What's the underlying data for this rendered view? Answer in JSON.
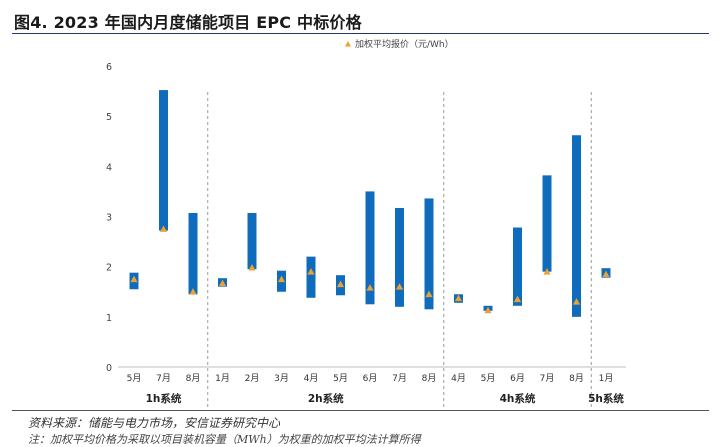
{
  "figure": {
    "title": "图4. 2023 年国内月度储能项目 EPC 中标价格",
    "source": "资料来源：储能与电力市场，安信证券研究中心",
    "note": "注：加权平均价格为采取以项目装机容量（MWh）为权重的加权平均法计算所得"
  },
  "colors": {
    "bar": "#0f6cbd",
    "marker": "#f0a030",
    "grid": "#e5e5e5",
    "axis": "#bfbfbf"
  },
  "chart_data": {
    "type": "range-bar",
    "title": "",
    "legend": {
      "label": "加权平均报价（元/Wh）",
      "placement": "top-center",
      "marker": "triangle"
    },
    "ylim": [
      0,
      6
    ],
    "yticks": [
      0,
      1,
      2,
      3,
      4,
      5,
      6
    ],
    "grid": false,
    "categories": [
      "5月",
      "7月",
      "8月",
      "1月",
      "2月",
      "3月",
      "4月",
      "5月",
      "6月",
      "7月",
      "8月",
      "4月",
      "5月",
      "6月",
      "7月",
      "8月",
      "1月"
    ],
    "groups": [
      {
        "label": "1h系统",
        "count": 3
      },
      {
        "label": "2h系统",
        "count": 8
      },
      {
        "label": "4h系统",
        "count": 5
      },
      {
        "label": "5h系统",
        "count": 1
      }
    ],
    "low": [
      1.55,
      2.72,
      1.45,
      1.6,
      1.95,
      1.5,
      1.38,
      1.43,
      1.25,
      1.2,
      1.15,
      1.28,
      1.12,
      1.22,
      1.9,
      1.0,
      1.78
    ],
    "high": [
      1.88,
      5.52,
      3.07,
      1.77,
      3.07,
      1.92,
      2.2,
      1.83,
      3.5,
      3.17,
      3.36,
      1.45,
      1.22,
      2.78,
      3.82,
      4.62,
      1.97
    ],
    "weighted_avg": [
      1.75,
      2.75,
      1.5,
      1.67,
      1.98,
      1.75,
      1.9,
      1.65,
      1.58,
      1.6,
      1.45,
      1.37,
      1.13,
      1.35,
      1.9,
      1.3,
      1.85
    ]
  }
}
